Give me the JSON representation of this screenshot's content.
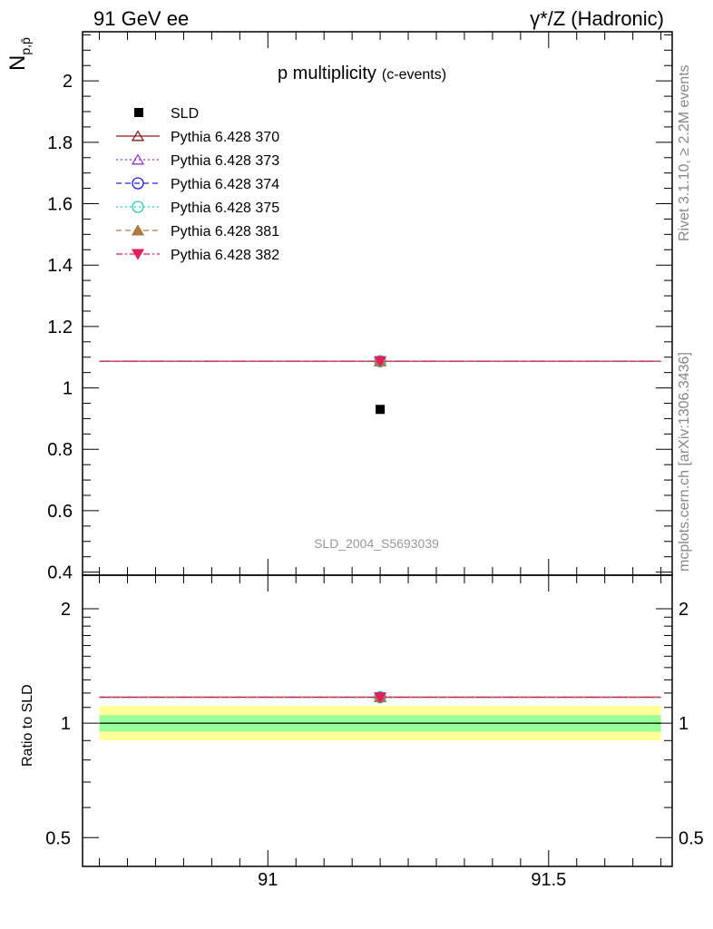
{
  "header": {
    "left": "91 GeV ee",
    "right": "γ*/Z (Hadronic)"
  },
  "side_labels": {
    "rivet": "Rivet 3.1.10, ≥ 2.2M events",
    "mcplots": "mcplots.cern.ch [arXiv:1306.3436]"
  },
  "chart_data": [
    {
      "type": "scatter",
      "panel": "main",
      "title": "p multiplicity",
      "title_suffix": "(c-events)",
      "ylabel": "N_{p,p̄}",
      "watermark": "SLD_2004_S5693039",
      "xlim": [
        90.67,
        91.72
      ],
      "ylim": [
        0.39,
        2.16
      ],
      "yticks": [
        0.4,
        0.6,
        0.8,
        1,
        1.2,
        1.4,
        1.6,
        1.8,
        2
      ],
      "ytick_labels": [
        "0.4",
        "0.6",
        "0.8",
        "1",
        "1.2",
        "1.4",
        "1.6",
        "1.8",
        "2"
      ],
      "legend_position": "top-left",
      "data": {
        "name": "SLD",
        "x": 91.2,
        "y": 0.93
      },
      "mc_range": [
        90.7,
        91.7
      ],
      "series": [
        {
          "name": "Pythia 6.428 370",
          "x": 91.2,
          "y": 1.087,
          "color": "#8b1a1a",
          "marker": "triangle-open",
          "dash": "solid"
        },
        {
          "name": "Pythia 6.428 373",
          "x": 91.2,
          "y": 1.087,
          "color": "#9932cc",
          "marker": "triangle-open",
          "dash": "dotted"
        },
        {
          "name": "Pythia 6.428 374",
          "x": 91.2,
          "y": 1.087,
          "color": "#2020e0",
          "marker": "circle-open",
          "dash": "dashed"
        },
        {
          "name": "Pythia 6.428 375",
          "x": 91.2,
          "y": 1.087,
          "color": "#20d0c0",
          "marker": "circle-open",
          "dash": "dotted"
        },
        {
          "name": "Pythia 6.428 381",
          "x": 91.2,
          "y": 1.087,
          "color": "#b07840",
          "marker": "triangle-filled",
          "dash": "dashed"
        },
        {
          "name": "Pythia 6.428 382",
          "x": 91.2,
          "y": 1.087,
          "color": "#e0205a",
          "marker": "triangledown-filled",
          "dash": "dashdot"
        }
      ]
    },
    {
      "type": "scatter",
      "panel": "ratio",
      "ylabel": "Ratio to SLD",
      "xlim": [
        90.67,
        91.72
      ],
      "ylim": [
        0.42,
        2.45
      ],
      "yticks": [
        0.5,
        1,
        2
      ],
      "ytick_labels": [
        "0.5",
        "1",
        "2"
      ],
      "xticks": [
        91,
        91.5
      ],
      "xtick_labels": [
        "91",
        "91.5"
      ],
      "band_inner": [
        0.95,
        1.05
      ],
      "band_outer": [
        0.9,
        1.11
      ],
      "ratio_value": 1.17
    }
  ]
}
